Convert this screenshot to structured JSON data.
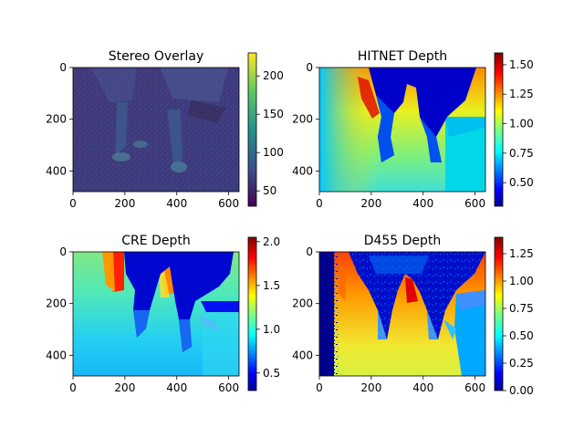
{
  "chart_data": [
    {
      "type": "heatmap",
      "title": "Stereo Overlay",
      "colormap": "viridis",
      "xlim": [
        0,
        640
      ],
      "ylim": [
        480,
        0
      ],
      "xticks": [
        "0",
        "200",
        "400",
        "600"
      ],
      "yticks": [
        "0",
        "200",
        "400"
      ],
      "colorbar": {
        "range": [
          30,
          230
        ],
        "ticks": [
          "50",
          "100",
          "150",
          "200"
        ]
      }
    },
    {
      "type": "heatmap",
      "title": "HITNET Depth",
      "colormap": "jet",
      "xlim": [
        0,
        640
      ],
      "ylim": [
        480,
        0
      ],
      "xticks": [
        "0",
        "200",
        "400",
        "600"
      ],
      "yticks": [
        "0",
        "200",
        "400"
      ],
      "colorbar": {
        "range": [
          0.3,
          1.6
        ],
        "ticks": [
          "0.50",
          "0.75",
          "1.00",
          "1.25",
          "1.50"
        ]
      }
    },
    {
      "type": "heatmap",
      "title": "CRE Depth",
      "colormap": "jet",
      "xlim": [
        0,
        640
      ],
      "ylim": [
        480,
        0
      ],
      "xticks": [
        "0",
        "200",
        "400",
        "600"
      ],
      "yticks": [
        "0",
        "200",
        "400"
      ],
      "colorbar": {
        "range": [
          0.3,
          2.05
        ],
        "ticks": [
          "0.5",
          "1.0",
          "1.5",
          "2.0"
        ]
      }
    },
    {
      "type": "heatmap",
      "title": "D455 Depth",
      "colormap": "jet",
      "xlim": [
        0,
        640
      ],
      "ylim": [
        480,
        0
      ],
      "xticks": [
        "0",
        "200",
        "400",
        "600"
      ],
      "yticks": [
        "0",
        "200",
        "400"
      ],
      "colorbar": {
        "range": [
          0.0,
          1.4
        ],
        "ticks": [
          "0.00",
          "0.25",
          "0.50",
          "0.75",
          "1.00",
          "1.25"
        ]
      }
    }
  ]
}
